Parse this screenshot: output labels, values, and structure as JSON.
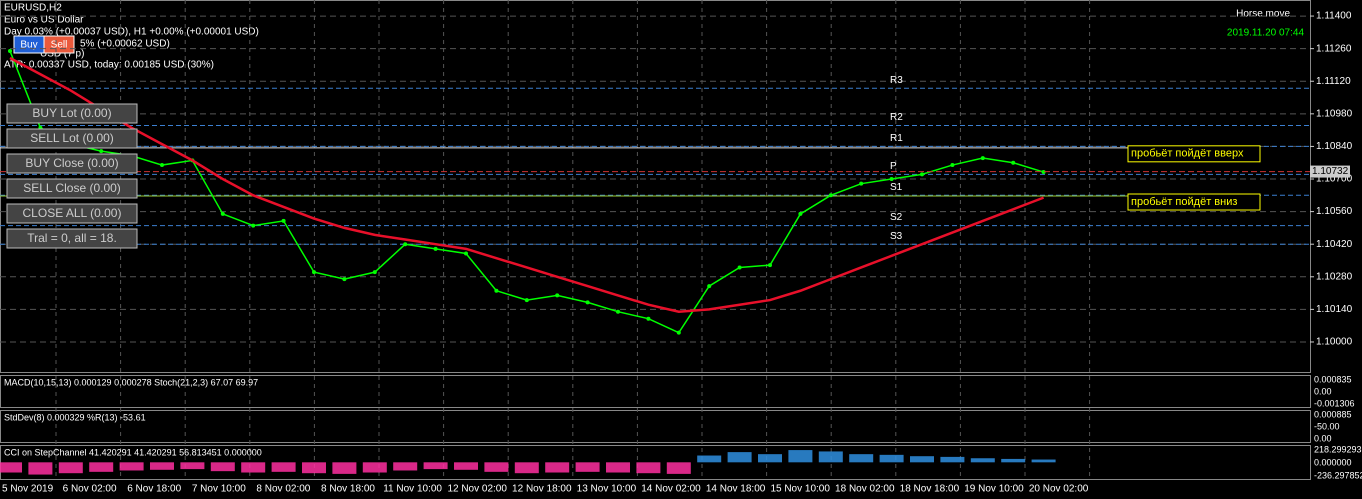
{
  "header": {
    "symbol": "EURUSD,H2",
    "description": "Euro vs US Dollar",
    "change": "Day 0.03% (+0.00037 USD), H1 +0.00% (+0.00001 USD)",
    "line4": "5% (+0.00062 USD)",
    "line5": "USD (7 p)",
    "atr": "ATR: 0.00337 USD, today: 0.00185 USD (30%)"
  },
  "buttons": {
    "buy": "Buy",
    "sell": "Sell"
  },
  "panel": [
    "BUY Lot (0.00)",
    "SELL Lot (0.00)",
    "BUY Close (0.00)",
    "SELL Close (0.00)",
    "CLOSE ALL (0.00)",
    "Tral = 0, all = 18."
  ],
  "top_right": {
    "expert": "Horse move",
    "time": "2019.11.20 07:44"
  },
  "chart_data": {
    "type": "line",
    "series": [
      {
        "name": "EURUSD",
        "color": "#00ff00",
        "values": [
          1.1125,
          1.1092,
          1.1085,
          1.1082,
          1.108,
          1.1076,
          1.1078,
          1.1055,
          1.105,
          1.1052,
          1.103,
          1.1027,
          1.103,
          1.1042,
          1.104,
          1.1038,
          1.1022,
          1.1018,
          1.102,
          1.1017,
          1.1013,
          1.101,
          1.1004,
          1.1024,
          1.1032,
          1.1033,
          1.1055,
          1.1063,
          1.1068,
          1.107,
          1.1072,
          1.1076,
          1.1079,
          1.1077,
          1.1073
        ]
      },
      {
        "name": "MA",
        "color": "#e8102a",
        "values": [
          1.1122,
          1.1115,
          1.1108,
          1.11,
          1.1092,
          1.1085,
          1.1078,
          1.107,
          1.1063,
          1.1058,
          1.1053,
          1.1049,
          1.1046,
          1.1044,
          1.1042,
          1.104,
          1.1036,
          1.1032,
          1.1028,
          1.1024,
          1.102,
          1.1016,
          1.1013,
          1.1014,
          1.1016,
          1.1018,
          1.1022,
          1.1027,
          1.1032,
          1.1037,
          1.1042,
          1.1047,
          1.1052,
          1.1057,
          1.1062
        ]
      }
    ],
    "ylim": [
      1.09871,
      1.11469
    ],
    "yticks": [
      {
        "value": 1.114,
        "label": "1.11400"
      },
      {
        "value": 1.1126,
        "label": "1.11260"
      },
      {
        "value": 1.1112,
        "label": "1.11120"
      },
      {
        "value": 1.1098,
        "label": "1.10980"
      },
      {
        "value": 1.1084,
        "label": "1.10840"
      },
      {
        "value": 1.107,
        "label": "1.10700"
      },
      {
        "value": 1.1056,
        "label": "1.10560"
      },
      {
        "value": 1.1042,
        "label": "1.10420"
      },
      {
        "value": 1.1028,
        "label": "1.10280"
      },
      {
        "value": 1.1014,
        "label": "1.10140"
      },
      {
        "value": 1.1,
        "label": "1.10000"
      }
    ],
    "current_price": 1.10732,
    "levels": [
      {
        "name": "R3",
        "value": 1.1109
      },
      {
        "name": "R2",
        "value": 1.1093
      },
      {
        "name": "R1",
        "value": 1.1084
      },
      {
        "name": "P",
        "value": 1.1072
      },
      {
        "name": "S1",
        "value": 1.1063
      },
      {
        "name": "S2",
        "value": 1.105
      },
      {
        "name": "S3",
        "value": 1.1042
      }
    ],
    "annotations": [
      {
        "text": "пробьёт пойдёт вверх",
        "value": 1.10834
      },
      {
        "text": "пробьёт пойдёт вниз",
        "value": 1.10627
      }
    ],
    "time_labels": [
      "5 Nov 2019",
      "6 Nov 02:00",
      "6 Nov 18:00",
      "7 Nov 10:00",
      "8 Nov 02:00",
      "8 Nov 18:00",
      "11 Nov 10:00",
      "12 Nov 02:00",
      "12 Nov 18:00",
      "13 Nov 10:00",
      "14 Nov 02:00",
      "14 Nov 18:00",
      "15 Nov 10:00",
      "18 Nov 02:00",
      "18 Nov 18:00",
      "19 Nov 10:00",
      "20 Nov 02:00"
    ]
  },
  "indicators": [
    {
      "title": "MACD(10,15,13) 0.000129 0.000278 Stoch(21,2,3) 67.07 69.97",
      "ticks": [
        "0.000835",
        "0.00",
        "-0.001306"
      ]
    },
    {
      "title": "StdDev(8) 0.000329 %R(13) -53.61",
      "ticks": [
        "0.000885",
        "-50.00",
        "0.00"
      ]
    },
    {
      "title": "CCI on StepChannel 41.420291 41.420291 56.813451 0.000000",
      "ticks": [
        "218.299293",
        "0.000000",
        "-236.297852"
      ],
      "values": [
        -150,
        -180,
        -160,
        -140,
        -120,
        -110,
        -100,
        -130,
        -150,
        -140,
        -160,
        -170,
        -150,
        -120,
        -100,
        -110,
        -140,
        -160,
        -150,
        -140,
        -150,
        -160,
        -170,
        100,
        150,
        120,
        180,
        160,
        120,
        110,
        90,
        80,
        60,
        50,
        41
      ],
      "ylim": [
        -260,
        240
      ]
    }
  ]
}
